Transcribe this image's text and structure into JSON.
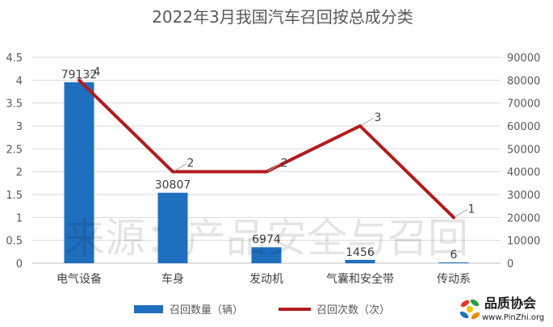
{
  "colors": {
    "bar": "#1f6fbf",
    "line": "#b01c1c",
    "grid": "#d9d9d9",
    "axis": "#bfbfbf",
    "text": "#595959"
  },
  "watermark": "来源：产品安全与召回",
  "logo": {
    "name": "品质协会",
    "url": "www.PinZhi.org",
    "icon": "colorful-pinwheel-logo"
  },
  "chart_data": {
    "type": "bar",
    "title": "2022年3月我国汽车召回按总成分类",
    "categories": [
      "电气设备",
      "车身",
      "发动机",
      "气囊和安全带",
      "传动系"
    ],
    "series": [
      {
        "name": "召回数量（辆）",
        "type": "bar",
        "axis": "right",
        "values": [
          79132,
          30807,
          6974,
          1456,
          6
        ]
      },
      {
        "name": "召回次数（次）",
        "type": "line",
        "axis": "left",
        "values": [
          4,
          2,
          2,
          3,
          1
        ]
      }
    ],
    "y_left": {
      "ylim": [
        0,
        4.5
      ],
      "ticks": [
        "0",
        "0.5",
        "1",
        "1.5",
        "2",
        "2.5",
        "3",
        "3.5",
        "4",
        "4.5"
      ]
    },
    "y_right": {
      "ylim": [
        0,
        90000
      ],
      "ticks": [
        "0",
        "10000",
        "20000",
        "30000",
        "40000",
        "50000",
        "60000",
        "70000",
        "80000",
        "90000"
      ]
    },
    "grid": true,
    "legend_position": "bottom"
  }
}
